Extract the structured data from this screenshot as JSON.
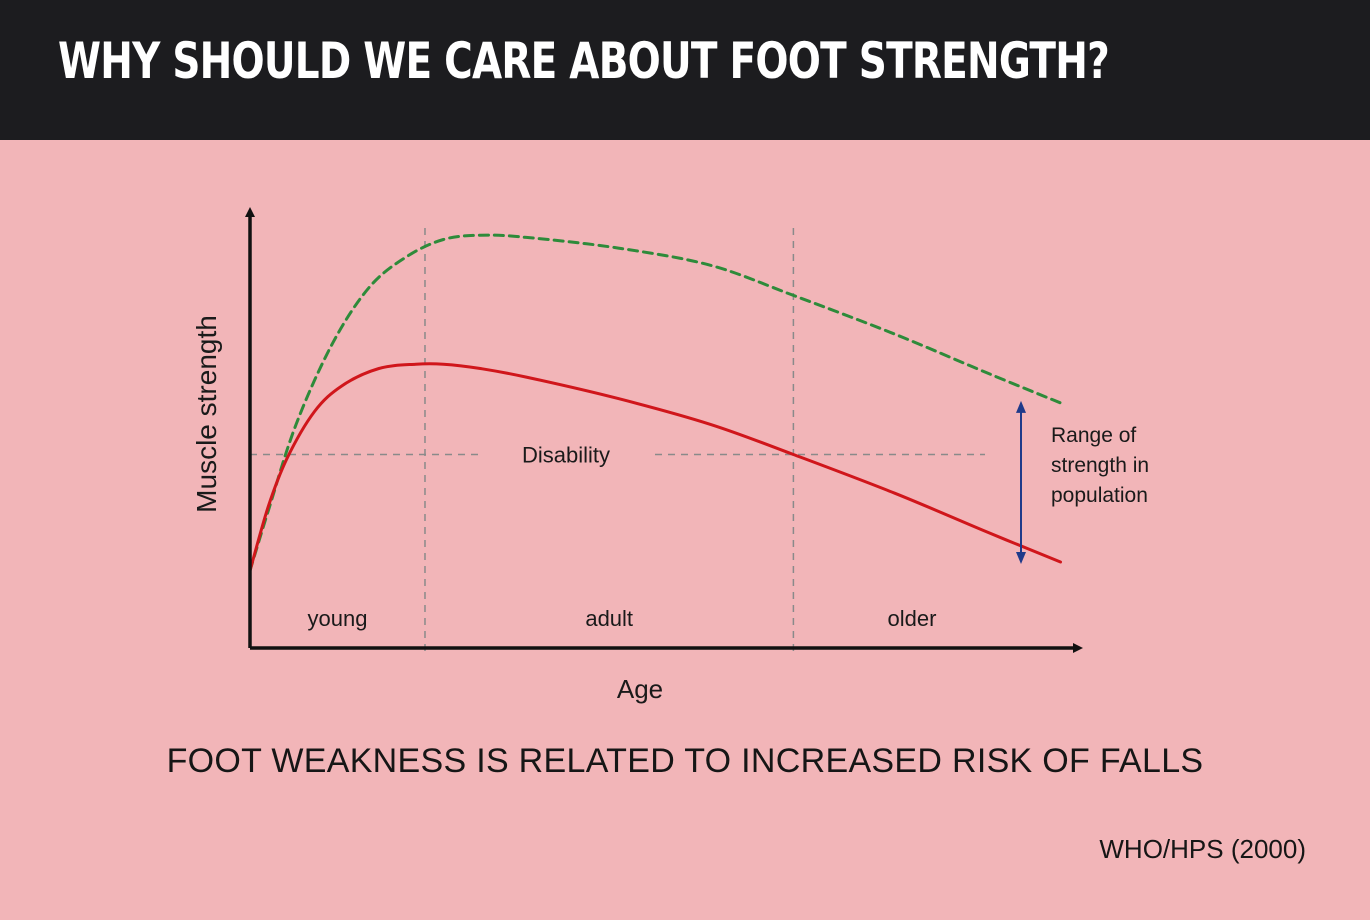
{
  "header": {
    "title": "WHY SHOULD WE CARE ABOUT FOOT STRENGTH?"
  },
  "caption": "FOOT WEAKNESS IS RELATED TO INCREASED RISK OF FALLS",
  "source": "WHO/HPS (2000)",
  "colors": {
    "background": "#f2b5b8",
    "header": "#1c1c1f",
    "upper_curve": "#2e8b3a",
    "lower_curve": "#d0161b",
    "range_arrow": "#1f3a8a",
    "guide_lines": "#8a8a8a"
  },
  "chart_data": {
    "type": "line",
    "title": "",
    "xlabel": "Age",
    "ylabel": "Muscle strength",
    "xlim": [
      0,
      100
    ],
    "ylim": [
      0,
      100
    ],
    "age_bands": [
      {
        "label": "young",
        "start": 0,
        "end": 19
      },
      {
        "label": "adult",
        "start": 19,
        "end": 59
      },
      {
        "label": "older",
        "start": 59,
        "end": 88
      }
    ],
    "threshold": {
      "label": "Disability",
      "value": 45
    },
    "series": [
      {
        "name": "upper range",
        "style": "dashed",
        "color": "#2e8b3a",
        "x": [
          0,
          2,
          5,
          9,
          13,
          17,
          21,
          25,
          30,
          40,
          50,
          59,
          70,
          80,
          88
        ],
        "y": [
          18,
          32,
          52,
          71,
          84,
          91,
          95,
          96,
          95.5,
          93,
          89,
          82,
          73,
          64,
          57
        ]
      },
      {
        "name": "lower range",
        "style": "solid",
        "color": "#d0161b",
        "x": [
          0,
          2,
          4,
          7,
          10,
          14,
          18,
          21,
          25,
          30,
          40,
          50,
          59,
          70,
          80,
          88
        ],
        "y": [
          18,
          33,
          44,
          55,
          61,
          65,
          66,
          66,
          65,
          63,
          58,
          52,
          45,
          36,
          27,
          20
        ]
      }
    ],
    "annotation": {
      "label": [
        "Range of",
        "strength in",
        "population"
      ],
      "y_from": 57,
      "y_to": 20
    }
  }
}
